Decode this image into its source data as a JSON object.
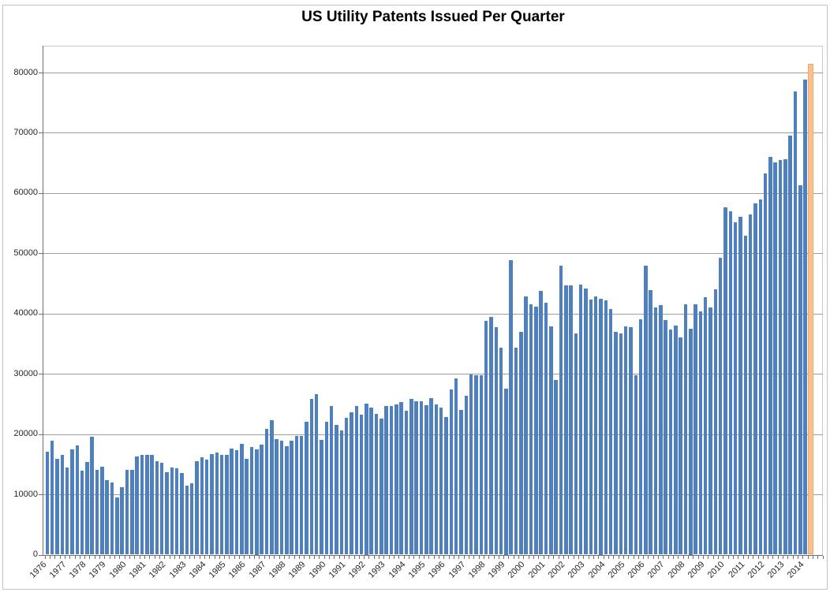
{
  "title": "US Utility Patents Issued Per Quarter",
  "chart_data": {
    "type": "bar",
    "title": "US Utility Patents Issued Per Quarter",
    "xlabel": "",
    "ylabel": "",
    "ylim": [
      0,
      80000
    ],
    "ytick_interval": 10000,
    "ytick_labels": [
      "0",
      "10000",
      "20000",
      "30000",
      "40000",
      "50000",
      "60000",
      "70000",
      "80000"
    ],
    "grid": true,
    "legend": false,
    "start_year": 1976,
    "start_quarter": 1,
    "year_labels": [
      "1976",
      "1977",
      "1978",
      "1979",
      "1980",
      "1981",
      "1982",
      "1983",
      "1984",
      "1985",
      "1986",
      "1987",
      "1988",
      "1989",
      "1990",
      "1991",
      "1992",
      "1993",
      "1994",
      "1995",
      "1996",
      "1997",
      "1998",
      "1999",
      "2000",
      "2001",
      "2002",
      "2003",
      "2004",
      "2005",
      "2006",
      "2007",
      "2008",
      "2009",
      "2010",
      "2011",
      "2012",
      "2013",
      "2014"
    ],
    "series_name": "US utility patents issued per quarter",
    "values": [
      17100,
      18900,
      15900,
      16500,
      14400,
      17400,
      18100,
      13900,
      15400,
      19500,
      14100,
      14600,
      12400,
      12000,
      9500,
      11200,
      14000,
      14000,
      16300,
      16500,
      16500,
      16500,
      15500,
      15200,
      13700,
      14400,
      14300,
      13600,
      11400,
      11900,
      15500,
      16100,
      15800,
      16700,
      17000,
      16500,
      16500,
      17600,
      17300,
      18400,
      15900,
      17800,
      17500,
      18300,
      20900,
      22300,
      19200,
      18900,
      18000,
      18900,
      19700,
      19700,
      22100,
      25900,
      26600,
      19100,
      22100,
      24600,
      21500,
      20600,
      22700,
      23600,
      24600,
      23200,
      25000,
      24400,
      23400,
      22600,
      24600,
      24700,
      24900,
      25300,
      23900,
      25900,
      25400,
      25400,
      24800,
      26000,
      24900,
      24400,
      22800,
      27400,
      29300,
      24000,
      26400,
      29900,
      29700,
      29800,
      38800,
      39400,
      37800,
      34300,
      27500,
      48800,
      34400,
      37000,
      42900,
      41600,
      41100,
      43700,
      41800,
      37900,
      29000,
      47900,
      44700,
      44700,
      36700,
      44800,
      44200,
      42300,
      42800,
      42500,
      42200,
      40800,
      37000,
      36700,
      37900,
      37700,
      29800,
      39000,
      48000,
      43900,
      41000,
      41400,
      38900,
      37300,
      38000,
      36000,
      41600,
      37500,
      41500,
      40300,
      42700,
      41000,
      44000,
      49300,
      57600,
      57000,
      55100,
      56100,
      52900,
      56500,
      58300,
      58900,
      63300,
      66000,
      65100,
      65500,
      65600,
      69500,
      76800,
      61300,
      78800,
      81400
    ],
    "highlight_last_bar": true,
    "bar_color": "#4D80BC",
    "highlight_color": "#FAC08F",
    "highlight_border_color": "#F2A963",
    "gridline_color": "#9C9C9C",
    "axis_color": "#6E6E6E",
    "plot_border_color": "#C9C9C9"
  }
}
